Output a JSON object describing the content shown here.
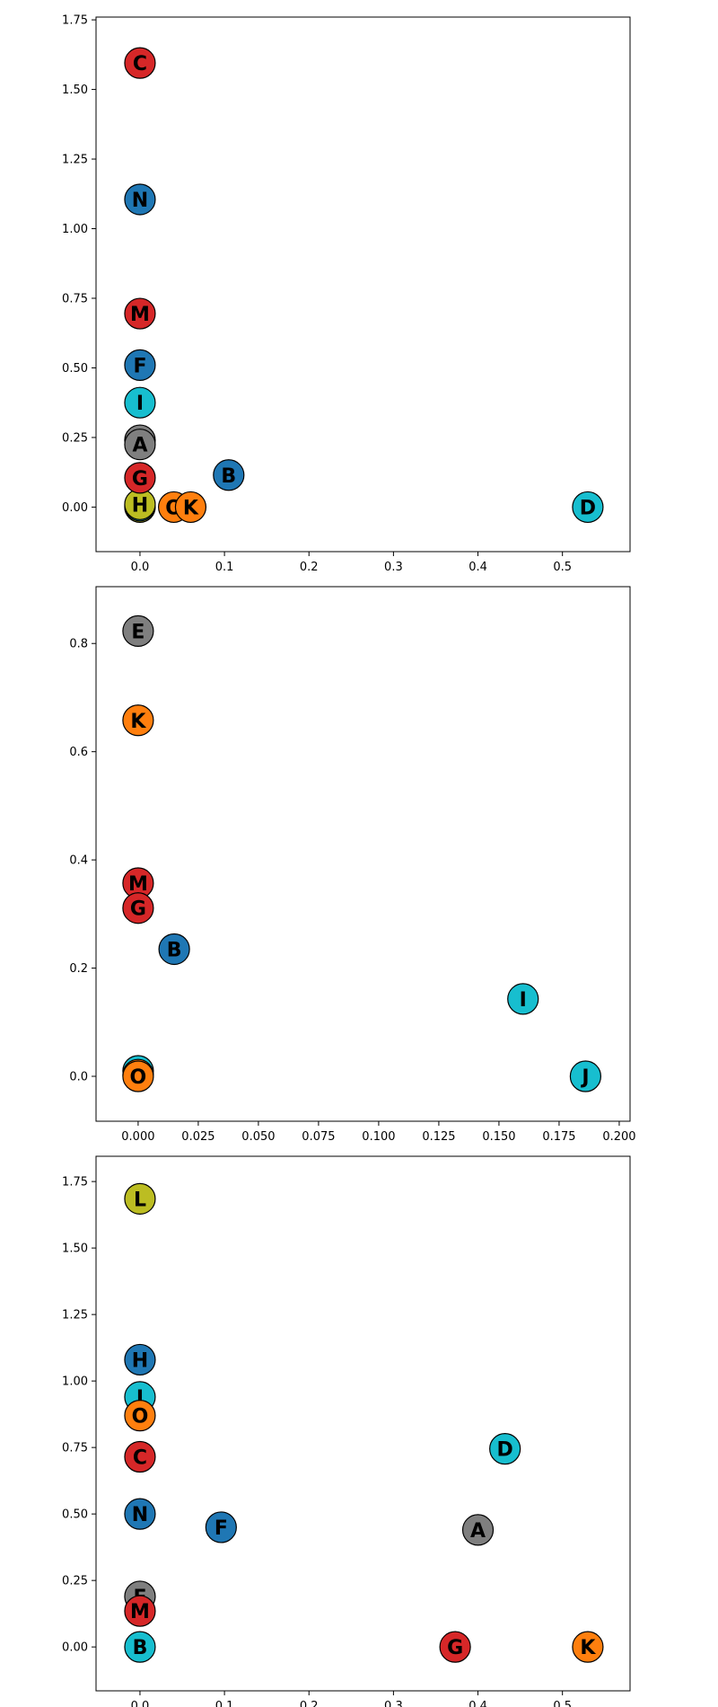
{
  "colors": {
    "gray": "#7f7f7f",
    "red": "#d62728",
    "blue": "#1f77b4",
    "cyan": "#17becf",
    "olive": "#bcbd22",
    "orange": "#ff7f0e"
  },
  "chart_data": [
    {
      "type": "scatter",
      "title": "",
      "xlabel": "",
      "ylabel": "",
      "grid": false,
      "xlim": [
        -0.052,
        0.58
      ],
      "ylim": [
        -0.16,
        1.76
      ],
      "xticks": [
        0.0,
        0.1,
        0.2,
        0.3,
        0.4,
        0.5
      ],
      "xtick_labels": [
        "0.0",
        "0.1",
        "0.2",
        "0.3",
        "0.4",
        "0.5"
      ],
      "yticks": [
        0.0,
        0.25,
        0.5,
        0.75,
        1.0,
        1.25,
        1.5,
        1.75
      ],
      "ytick_labels": [
        "0.00",
        "0.25",
        "0.50",
        "0.75",
        "1.00",
        "1.25",
        "1.50",
        "1.75"
      ],
      "points": [
        {
          "label": "L",
          "x": 0.0,
          "y": 0.0,
          "color": "olive"
        },
        {
          "label": "E",
          "x": 0.0,
          "y": 0.24,
          "color": "gray"
        },
        {
          "label": "A",
          "x": 0.0,
          "y": 0.225,
          "color": "gray"
        },
        {
          "label": "J",
          "x": 0.0,
          "y": 0.005,
          "color": "cyan"
        },
        {
          "label": "H",
          "x": 0.0,
          "y": 0.01,
          "color": "olive"
        },
        {
          "label": "C",
          "x": 0.0,
          "y": 1.595,
          "color": "red"
        },
        {
          "label": "N",
          "x": 0.0,
          "y": 1.105,
          "color": "blue"
        },
        {
          "label": "M",
          "x": 0.0,
          "y": 0.695,
          "color": "red"
        },
        {
          "label": "F",
          "x": 0.0,
          "y": 0.51,
          "color": "blue"
        },
        {
          "label": "I",
          "x": 0.0,
          "y": 0.375,
          "color": "cyan"
        },
        {
          "label": "G",
          "x": 0.0,
          "y": 0.105,
          "color": "red"
        },
        {
          "label": "B",
          "x": 0.105,
          "y": 0.115,
          "color": "blue"
        },
        {
          "label": "O",
          "x": 0.04,
          "y": 0.0,
          "color": "orange"
        },
        {
          "label": "K",
          "x": 0.06,
          "y": 0.0,
          "color": "orange"
        },
        {
          "label": "D",
          "x": 0.53,
          "y": 0.0,
          "color": "cyan"
        }
      ]
    },
    {
      "type": "scatter",
      "title": "",
      "xlabel": "",
      "ylabel": "",
      "grid": false,
      "xlim": [
        -0.0175,
        0.2045
      ],
      "ylim": [
        -0.083,
        0.905
      ],
      "xticks": [
        0.0,
        0.025,
        0.05,
        0.075,
        0.1,
        0.125,
        0.15,
        0.175,
        0.2
      ],
      "xtick_labels": [
        "0.000",
        "0.025",
        "0.050",
        "0.075",
        "0.100",
        "0.125",
        "0.150",
        "0.175",
        "0.200"
      ],
      "yticks": [
        0.0,
        0.2,
        0.4,
        0.6,
        0.8
      ],
      "ytick_labels": [
        "0.0",
        "0.2",
        "0.4",
        "0.6",
        "0.8"
      ],
      "points": [
        {
          "label": "H",
          "x": 0.0,
          "y": 0.01,
          "color": "cyan"
        },
        {
          "label": "L",
          "x": 0.0,
          "y": 0.003,
          "color": "orange"
        },
        {
          "label": "O",
          "x": 0.0,
          "y": 0.0,
          "color": "orange"
        },
        {
          "label": "E",
          "x": 0.0,
          "y": 0.823,
          "color": "gray"
        },
        {
          "label": "K",
          "x": 0.0,
          "y": 0.658,
          "color": "orange"
        },
        {
          "label": "M",
          "x": 0.0,
          "y": 0.357,
          "color": "red"
        },
        {
          "label": "G",
          "x": 0.0,
          "y": 0.311,
          "color": "red"
        },
        {
          "label": "B",
          "x": 0.015,
          "y": 0.235,
          "color": "blue"
        },
        {
          "label": "I",
          "x": 0.16,
          "y": 0.143,
          "color": "cyan"
        },
        {
          "label": "J",
          "x": 0.186,
          "y": 0.0,
          "color": "cyan"
        }
      ]
    },
    {
      "type": "scatter",
      "title": "",
      "xlabel": "",
      "ylabel": "",
      "grid": false,
      "xlim": [
        -0.052,
        0.58
      ],
      "ylim": [
        -0.165,
        1.845
      ],
      "xticks": [
        0.0,
        0.1,
        0.2,
        0.3,
        0.4,
        0.5
      ],
      "xtick_labels": [
        "0.0",
        "0.1",
        "0.2",
        "0.3",
        "0.4",
        "0.5"
      ],
      "yticks": [
        0.0,
        0.25,
        0.5,
        0.75,
        1.0,
        1.25,
        1.5,
        1.75
      ],
      "ytick_labels": [
        "0.00",
        "0.25",
        "0.50",
        "0.75",
        "1.00",
        "1.25",
        "1.50",
        "1.75"
      ],
      "points": [
        {
          "label": "E",
          "x": 0.0,
          "y": 0.19,
          "color": "gray"
        },
        {
          "label": "B",
          "x": 0.0,
          "y": 0.0,
          "color": "cyan"
        },
        {
          "label": "L",
          "x": 0.0,
          "y": 1.685,
          "color": "olive"
        },
        {
          "label": "H",
          "x": 0.0,
          "y": 1.08,
          "color": "blue"
        },
        {
          "label": "J",
          "x": 0.0,
          "y": 0.94,
          "color": "cyan"
        },
        {
          "label": "O",
          "x": 0.0,
          "y": 0.87,
          "color": "orange"
        },
        {
          "label": "C",
          "x": 0.0,
          "y": 0.715,
          "color": "red"
        },
        {
          "label": "N",
          "x": 0.0,
          "y": 0.5,
          "color": "blue"
        },
        {
          "label": "M",
          "x": 0.0,
          "y": 0.135,
          "color": "red"
        },
        {
          "label": "F",
          "x": 0.096,
          "y": 0.45,
          "color": "blue"
        },
        {
          "label": "A",
          "x": 0.4,
          "y": 0.44,
          "color": "gray"
        },
        {
          "label": "D",
          "x": 0.432,
          "y": 0.745,
          "color": "cyan"
        },
        {
          "label": "G",
          "x": 0.373,
          "y": 0.0,
          "color": "red"
        },
        {
          "label": "K",
          "x": 0.53,
          "y": 0.0,
          "color": "orange"
        }
      ]
    }
  ]
}
